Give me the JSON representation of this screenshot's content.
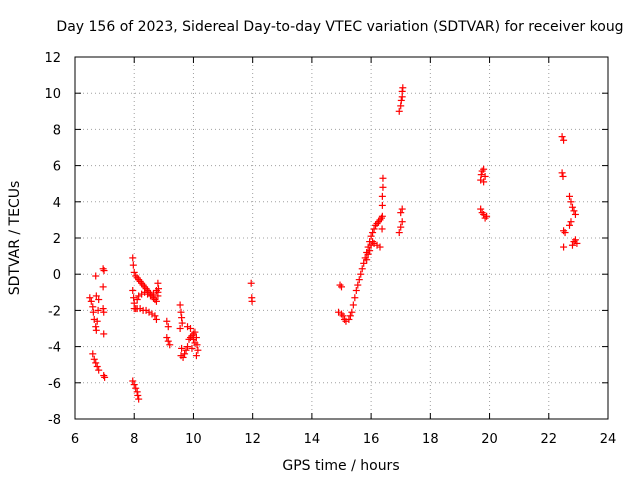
{
  "chart_data": {
    "type": "scatter",
    "title": "Day 156 of 2023, Sidereal Day-to-day VTEC variation (SDTVAR) for receiver koug",
    "xlabel": "GPS time / hours",
    "ylabel": "SDTVAR / TECUs",
    "xlim": [
      6,
      24
    ],
    "ylim": [
      -8,
      12
    ],
    "xticks": [
      6,
      8,
      10,
      12,
      14,
      16,
      18,
      20,
      22,
      24
    ],
    "xtick_labels": [
      "6",
      "8",
      "10",
      "12",
      "14",
      "16",
      "18",
      "20",
      "22",
      "24"
    ],
    "yticks": [
      -8,
      -6,
      -4,
      -2,
      0,
      2,
      4,
      6,
      8,
      10,
      12
    ],
    "ytick_labels": [
      "-8",
      "-6",
      "-4",
      "-2",
      "0",
      "2",
      "4",
      "6",
      "8",
      "10",
      "12"
    ],
    "grid": true,
    "marker": "+",
    "color": "#ff0000",
    "series": [
      {
        "name": "SDTVAR",
        "points": [
          [
            6.5,
            -1.3
          ],
          [
            6.55,
            -1.5
          ],
          [
            6.6,
            -1.8
          ],
          [
            6.62,
            -2.1
          ],
          [
            6.65,
            -2.5
          ],
          [
            6.7,
            -2.9
          ],
          [
            6.72,
            -3.1
          ],
          [
            6.75,
            -2.6
          ],
          [
            6.78,
            -2.0
          ],
          [
            6.8,
            -1.4
          ],
          [
            6.72,
            -1.2
          ],
          [
            6.7,
            -0.1
          ],
          [
            6.6,
            -4.4
          ],
          [
            6.65,
            -4.7
          ],
          [
            6.7,
            -4.9
          ],
          [
            6.75,
            -5.1
          ],
          [
            6.8,
            -5.3
          ],
          [
            6.95,
            -1.9
          ],
          [
            6.97,
            -2.1
          ],
          [
            6.95,
            -0.7
          ],
          [
            6.95,
            0.3
          ],
          [
            6.98,
            0.2
          ],
          [
            6.97,
            -3.3
          ],
          [
            7.0,
            -5.7
          ],
          [
            6.97,
            -5.6
          ],
          [
            7.95,
            0.9
          ],
          [
            7.97,
            0.5
          ],
          [
            8.0,
            0.1
          ],
          [
            8.05,
            -0.1
          ],
          [
            8.1,
            -0.2
          ],
          [
            8.15,
            -0.3
          ],
          [
            8.2,
            -0.4
          ],
          [
            8.25,
            -0.5
          ],
          [
            8.3,
            -0.6
          ],
          [
            8.35,
            -0.7
          ],
          [
            8.4,
            -0.8
          ],
          [
            8.45,
            -0.9
          ],
          [
            8.5,
            -1.0
          ],
          [
            8.55,
            -1.1
          ],
          [
            8.6,
            -1.2
          ],
          [
            8.65,
            -1.3
          ],
          [
            8.7,
            -1.4
          ],
          [
            8.75,
            -1.5
          ],
          [
            8.8,
            -1.2
          ],
          [
            8.82,
            -0.8
          ],
          [
            8.8,
            -0.5
          ],
          [
            7.95,
            -0.9
          ],
          [
            7.98,
            -1.3
          ],
          [
            8.0,
            -1.6
          ],
          [
            8.0,
            -1.9
          ],
          [
            8.05,
            -1.9
          ],
          [
            8.1,
            -1.9
          ],
          [
            8.2,
            -1.9
          ],
          [
            8.3,
            -2.0
          ],
          [
            8.4,
            -2.0
          ],
          [
            8.5,
            -2.1
          ],
          [
            8.6,
            -2.2
          ],
          [
            8.7,
            -2.3
          ],
          [
            8.75,
            -2.5
          ],
          [
            8.1,
            -1.4
          ],
          [
            8.15,
            -1.2
          ],
          [
            8.25,
            -1.1
          ],
          [
            8.35,
            -1.0
          ],
          [
            8.45,
            -1.1
          ],
          [
            8.55,
            -1.2
          ],
          [
            8.65,
            -1.1
          ],
          [
            8.75,
            -0.9
          ],
          [
            8.8,
            -1.0
          ],
          [
            7.95,
            -5.9
          ],
          [
            8.0,
            -6.1
          ],
          [
            8.05,
            -6.3
          ],
          [
            8.1,
            -6.5
          ],
          [
            8.12,
            -6.7
          ],
          [
            8.15,
            -6.9
          ],
          [
            9.1,
            -2.6
          ],
          [
            9.15,
            -2.9
          ],
          [
            9.1,
            -3.5
          ],
          [
            9.15,
            -3.7
          ],
          [
            9.2,
            -3.9
          ],
          [
            9.55,
            -1.7
          ],
          [
            9.58,
            -2.1
          ],
          [
            9.6,
            -2.4
          ],
          [
            9.62,
            -2.7
          ],
          [
            9.55,
            -3.0
          ],
          [
            9.6,
            -4.1
          ],
          [
            9.58,
            -4.5
          ],
          [
            9.65,
            -4.6
          ],
          [
            9.7,
            -4.4
          ],
          [
            9.75,
            -4.2
          ],
          [
            9.8,
            -4.0
          ],
          [
            9.85,
            -3.6
          ],
          [
            9.9,
            -3.5
          ],
          [
            9.95,
            -3.4
          ],
          [
            10.0,
            -3.3
          ],
          [
            10.05,
            -3.2
          ],
          [
            10.1,
            -3.5
          ],
          [
            10.12,
            -3.9
          ],
          [
            10.15,
            -4.2
          ],
          [
            10.1,
            -4.5
          ],
          [
            9.8,
            -2.9
          ],
          [
            9.9,
            -3.0
          ],
          [
            10.0,
            -3.6
          ],
          [
            10.05,
            -3.8
          ],
          [
            9.95,
            -4.1
          ],
          [
            11.95,
            -0.5
          ],
          [
            11.97,
            -1.3
          ],
          [
            11.98,
            -1.5
          ],
          [
            14.95,
            -0.6
          ],
          [
            15.0,
            -0.7
          ],
          [
            14.9,
            -2.1
          ],
          [
            15.0,
            -2.2
          ],
          [
            15.05,
            -2.3
          ],
          [
            15.1,
            -2.5
          ],
          [
            15.15,
            -2.6
          ],
          [
            15.25,
            -2.5
          ],
          [
            15.3,
            -2.3
          ],
          [
            15.35,
            -2.1
          ],
          [
            15.4,
            -1.7
          ],
          [
            15.45,
            -1.3
          ],
          [
            15.5,
            -0.9
          ],
          [
            15.55,
            -0.6
          ],
          [
            15.6,
            -0.3
          ],
          [
            15.65,
            0.0
          ],
          [
            15.7,
            0.3
          ],
          [
            15.75,
            0.6
          ],
          [
            15.8,
            0.9
          ],
          [
            15.85,
            1.2
          ],
          [
            15.9,
            1.5
          ],
          [
            15.95,
            1.8
          ],
          [
            16.0,
            2.1
          ],
          [
            16.05,
            2.3
          ],
          [
            16.1,
            2.5
          ],
          [
            16.15,
            2.7
          ],
          [
            16.2,
            2.8
          ],
          [
            16.25,
            2.9
          ],
          [
            16.3,
            3.0
          ],
          [
            16.35,
            3.1
          ],
          [
            15.85,
            0.8
          ],
          [
            15.9,
            1.1
          ],
          [
            15.95,
            1.3
          ],
          [
            16.0,
            1.6
          ],
          [
            16.05,
            1.8
          ],
          [
            16.1,
            1.7
          ],
          [
            16.2,
            1.6
          ],
          [
            16.3,
            1.5
          ],
          [
            16.37,
            2.5
          ],
          [
            16.38,
            3.2
          ],
          [
            16.38,
            3.8
          ],
          [
            16.38,
            4.3
          ],
          [
            16.4,
            4.8
          ],
          [
            16.4,
            5.3
          ],
          [
            16.95,
            2.3
          ],
          [
            17.0,
            2.6
          ],
          [
            17.05,
            2.9
          ],
          [
            17.0,
            3.4
          ],
          [
            17.05,
            3.6
          ],
          [
            16.95,
            9.0
          ],
          [
            17.0,
            9.3
          ],
          [
            17.02,
            9.6
          ],
          [
            17.05,
            9.8
          ],
          [
            17.05,
            10.1
          ],
          [
            17.07,
            10.3
          ],
          [
            19.7,
            5.2
          ],
          [
            19.72,
            5.5
          ],
          [
            19.75,
            5.7
          ],
          [
            19.8,
            5.8
          ],
          [
            19.85,
            5.4
          ],
          [
            19.8,
            5.1
          ],
          [
            19.7,
            3.6
          ],
          [
            19.75,
            3.4
          ],
          [
            19.8,
            3.3
          ],
          [
            19.85,
            3.1
          ],
          [
            19.9,
            3.2
          ],
          [
            22.45,
            7.6
          ],
          [
            22.5,
            7.4
          ],
          [
            22.45,
            5.6
          ],
          [
            22.48,
            5.4
          ],
          [
            22.5,
            2.4
          ],
          [
            22.55,
            2.3
          ],
          [
            22.5,
            1.5
          ],
          [
            22.8,
            1.6
          ],
          [
            22.85,
            1.8
          ],
          [
            22.9,
            1.9
          ],
          [
            22.95,
            1.7
          ],
          [
            22.7,
            4.3
          ],
          [
            22.75,
            4.0
          ],
          [
            22.8,
            3.7
          ],
          [
            22.85,
            3.5
          ],
          [
            22.9,
            3.3
          ],
          [
            22.75,
            2.9
          ],
          [
            22.7,
            2.7
          ]
        ]
      }
    ]
  }
}
